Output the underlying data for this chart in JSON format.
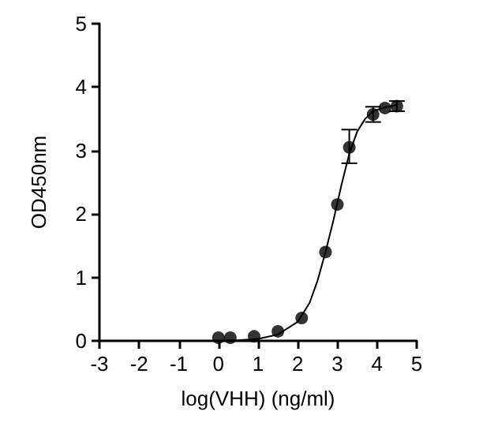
{
  "chart_data": {
    "type": "scatter",
    "xlabel": "log(VHH) (ng/ml)",
    "ylabel": "OD450nm",
    "xlim": [
      -3,
      5
    ],
    "xticks": [
      -3,
      -2,
      -1,
      0,
      1,
      2,
      3,
      4,
      5
    ],
    "ylim": [
      0,
      5
    ],
    "yticks": [
      0,
      1,
      2,
      3,
      4,
      5
    ],
    "marker": "circle",
    "series": [
      {
        "color": "#000000",
        "x": [
          0,
          0.3,
          0.9,
          1.5,
          2.1,
          2.7,
          3.0,
          3.3,
          3.9,
          4.2,
          4.5
        ],
        "values": [
          0.05,
          0.05,
          0.07,
          0.15,
          0.36,
          1.4,
          2.15,
          3.05,
          3.57,
          3.67,
          3.7
        ],
        "errors": [
          null,
          null,
          null,
          null,
          null,
          null,
          null,
          [
            2.8,
            3.33
          ],
          0.12,
          null,
          0.08
        ]
      },
      {
        "type": "line",
        "color": "#000000",
        "line_style": "solid",
        "marker": "none",
        "x": [
          0,
          0.5,
          1,
          1.5,
          2,
          2.3,
          2.5,
          2.7,
          2.9,
          3.1,
          3.3,
          3.5,
          3.7,
          3.9,
          4.2,
          4.5
        ],
        "values": [
          0.0,
          0.01,
          0.03,
          0.1,
          0.3,
          0.6,
          0.95,
          1.4,
          1.9,
          2.45,
          2.95,
          3.3,
          3.5,
          3.62,
          3.68,
          3.72
        ]
      }
    ]
  }
}
